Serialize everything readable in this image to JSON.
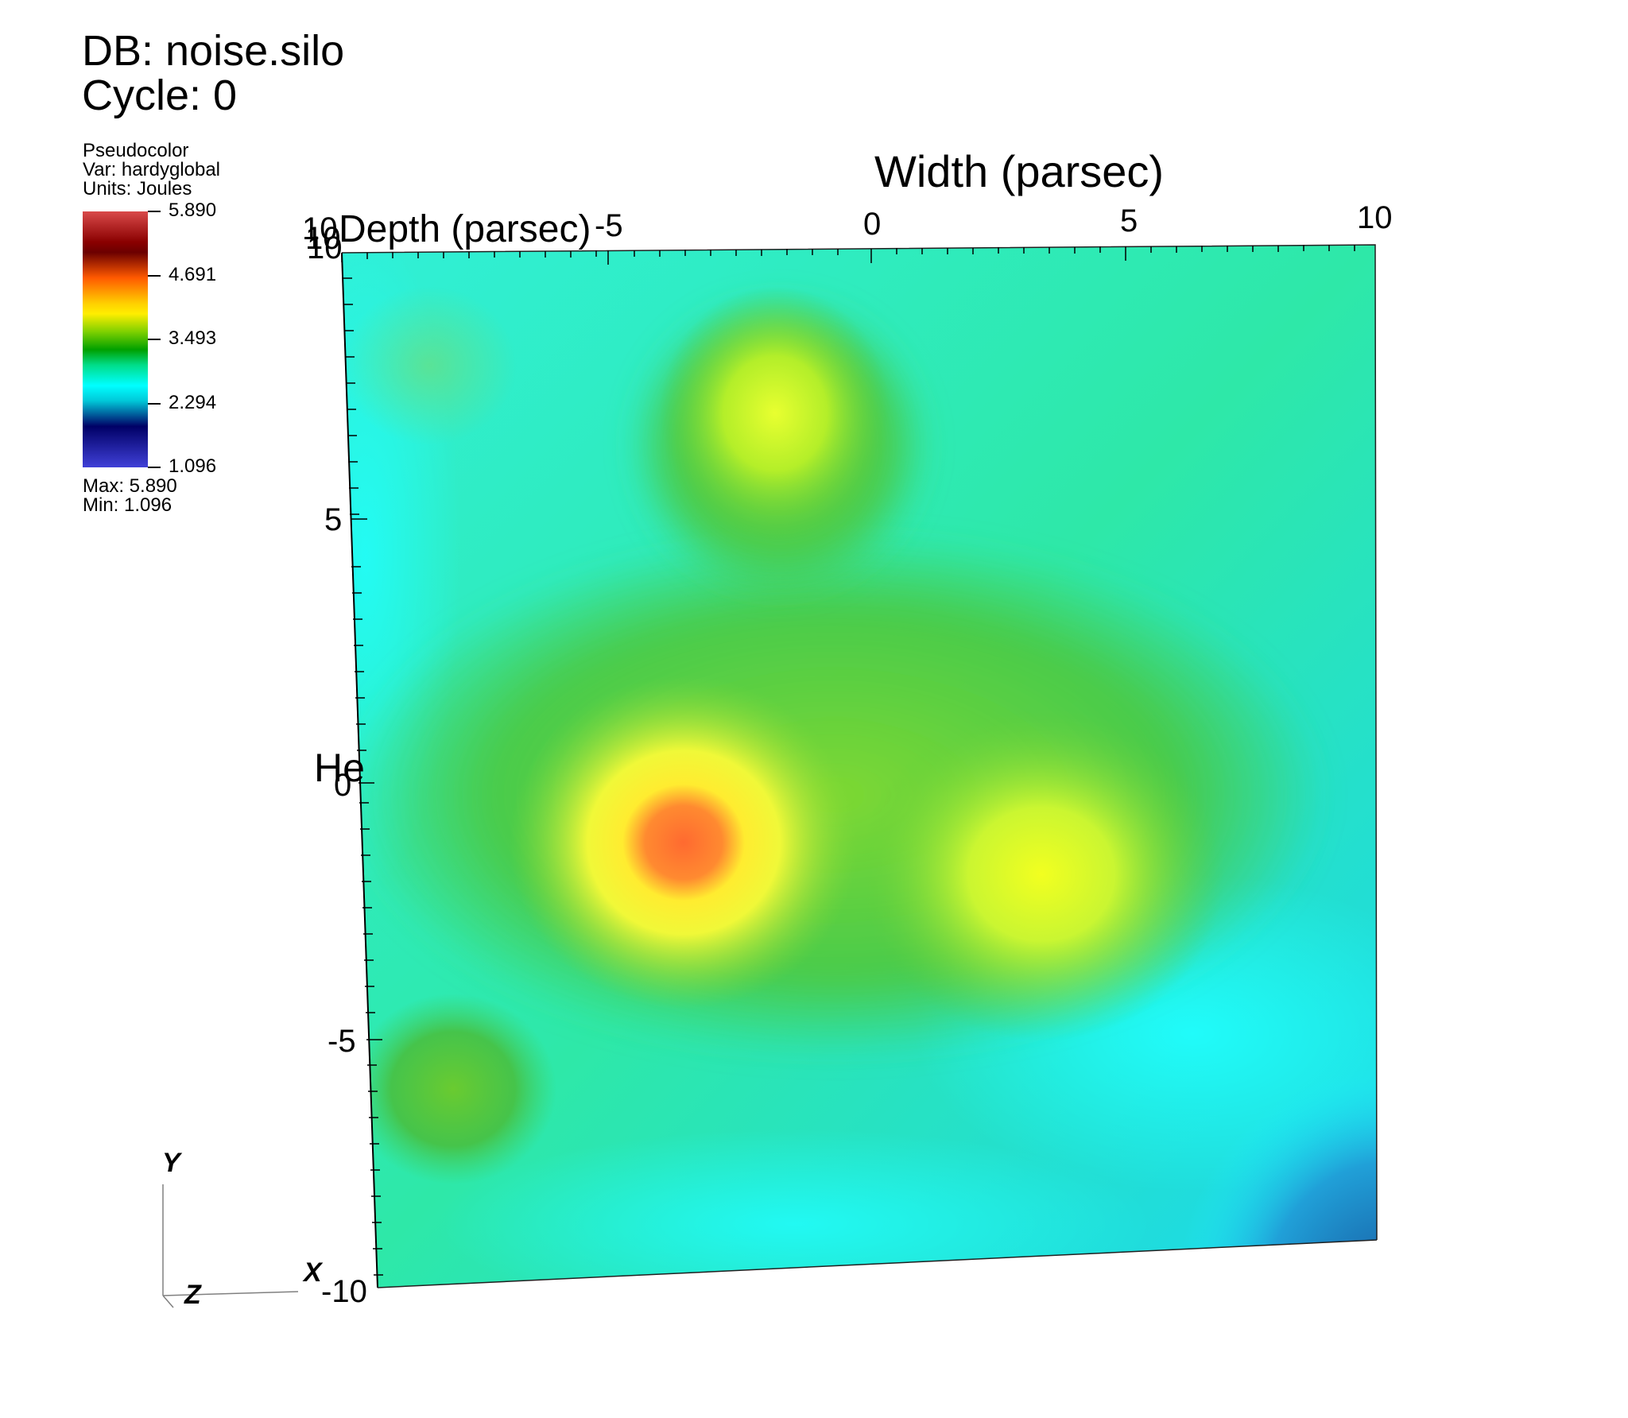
{
  "header": {
    "database": "DB: noise.silo",
    "cycle": "Cycle: 0"
  },
  "legend": {
    "plot_type": "Pseudocolor",
    "variable": "Var: hardyglobal",
    "units": "Units: Joules",
    "ticks": [
      "5.890",
      "4.691",
      "3.493",
      "2.294",
      "1.096"
    ],
    "max_label": "Max:  5.890",
    "min_label": "Min:  1.096",
    "colors": [
      "#d94a4a",
      "#6b0000",
      "#ff5a00",
      "#ffee00",
      "#00a000",
      "#00ffff",
      "#000066",
      "#4040d8"
    ]
  },
  "axes": {
    "width_title": "Width (parsec)",
    "depth_title": "Depth (parsec)",
    "height_title_visible": "He",
    "x_ticks": [
      "-5",
      "0",
      "5",
      "10"
    ],
    "y_ticks": [
      "5",
      "0",
      "-5"
    ],
    "y_corner_labels": [
      "10",
      "10",
      "10"
    ],
    "bottom_corner": "-10"
  },
  "triad": {
    "y": "Y",
    "x": "X",
    "z": "Z"
  },
  "field": {
    "background": "#22e6c0",
    "hotspots": [
      {
        "color": "#d9ff2a",
        "note": "yellow blob upper"
      },
      {
        "color": "#ff5a20",
        "note": "orange-red core left"
      },
      {
        "color": "#ecff20",
        "note": "yellow blob right"
      },
      {
        "color": "#50c830",
        "note": "green blob lower-left"
      }
    ]
  }
}
